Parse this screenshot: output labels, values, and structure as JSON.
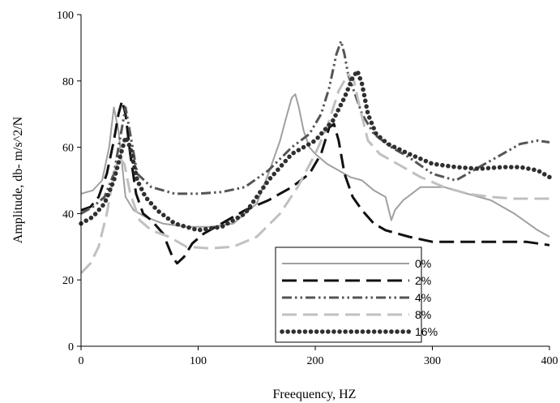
{
  "chart_data": {
    "type": "line",
    "title": "",
    "xlabel": "Freequency, HZ",
    "ylabel": "Amplitude, db- m/s^2/N",
    "xlim": [
      0,
      400
    ],
    "ylim": [
      0,
      100
    ],
    "xticks": [
      0,
      100,
      200,
      300,
      400
    ],
    "yticks": [
      0,
      20,
      40,
      60,
      80,
      100
    ],
    "grid": false,
    "legend_position": "bottom-right",
    "series": [
      {
        "name": "0%",
        "color": "#a0a0a0",
        "style": "solid",
        "x": [
          0,
          10,
          18,
          24,
          28,
          32,
          38,
          45,
          55,
          70,
          90,
          110,
          130,
          150,
          160,
          170,
          176,
          180,
          183,
          186,
          190,
          195,
          200,
          210,
          220,
          230,
          240,
          250,
          260,
          265,
          268,
          275,
          290,
          310,
          330,
          350,
          370,
          390,
          400
        ],
        "y": [
          46,
          47,
          50,
          60,
          72,
          65,
          45,
          41,
          39,
          37,
          36,
          36,
          37,
          43,
          52,
          62,
          70,
          75,
          76,
          72,
          65,
          60,
          58,
          55,
          53,
          51,
          50,
          47,
          45,
          38,
          41,
          44,
          48,
          48,
          46,
          44,
          40,
          35,
          33
        ]
      },
      {
        "name": "2%",
        "color": "#111111",
        "style": "longdash",
        "x": [
          0,
          8,
          15,
          22,
          28,
          32,
          35,
          38,
          42,
          47,
          53,
          60,
          70,
          78,
          82,
          88,
          95,
          105,
          120,
          140,
          160,
          180,
          195,
          205,
          212,
          216,
          220,
          225,
          232,
          240,
          250,
          260,
          280,
          300,
          320,
          340,
          360,
          380,
          400
        ],
        "y": [
          41,
          42,
          45,
          52,
          62,
          70,
          74,
          70,
          58,
          46,
          40,
          38,
          34,
          27,
          25,
          27,
          31,
          34,
          37,
          41,
          44,
          48,
          52,
          58,
          66,
          67,
          62,
          52,
          45,
          41,
          37,
          35,
          33,
          31.5,
          31.5,
          31.5,
          31.5,
          31.5,
          30.5
        ]
      },
      {
        "name": "4%",
        "color": "#555555",
        "style": "dashdotdot",
        "x": [
          0,
          10,
          20,
          28,
          33,
          38,
          42,
          48,
          60,
          80,
          100,
          120,
          140,
          160,
          180,
          195,
          205,
          212,
          218,
          222,
          225,
          228,
          232,
          240,
          250,
          265,
          280,
          300,
          320,
          340,
          360,
          375,
          390,
          400
        ],
        "y": [
          40,
          42,
          45,
          52,
          62,
          72,
          64,
          52,
          48,
          46,
          46,
          46.5,
          48,
          53,
          60,
          64,
          70,
          78,
          88,
          92,
          88,
          82,
          78,
          70,
          64,
          60,
          57,
          52,
          50,
          54,
          58,
          61,
          62,
          61.5
        ]
      },
      {
        "name": "8%",
        "color": "#c0c0c0",
        "style": "longdash",
        "x": [
          0,
          8,
          15,
          22,
          27,
          32,
          37,
          42,
          50,
          60,
          75,
          90,
          110,
          130,
          150,
          170,
          185,
          200,
          210,
          220,
          228,
          233,
          238,
          245,
          255,
          270,
          290,
          310,
          330,
          350,
          370,
          390,
          400
        ],
        "y": [
          22,
          25,
          30,
          40,
          50,
          57,
          55,
          46,
          38,
          35,
          33,
          30,
          29.5,
          30,
          33,
          40,
          48,
          58,
          66,
          77,
          82,
          80,
          72,
          62,
          58,
          55,
          51,
          48,
          46,
          45,
          44.5,
          44.5,
          44.5
        ]
      },
      {
        "name": "16%",
        "color": "#303030",
        "style": "dotted",
        "x": [
          0,
          10,
          20,
          28,
          34,
          38,
          42,
          48,
          55,
          65,
          80,
          100,
          120,
          140,
          160,
          180,
          200,
          215,
          225,
          232,
          236,
          240,
          245,
          252,
          262,
          280,
          300,
          320,
          340,
          360,
          375,
          390,
          400
        ],
        "y": [
          37,
          39,
          43,
          50,
          58,
          63,
          60,
          50,
          45,
          41,
          37,
          35,
          36,
          40,
          50,
          58,
          62,
          68,
          75,
          81,
          83,
          79,
          70,
          64,
          61,
          58,
          55,
          54,
          53.5,
          54,
          54,
          53,
          51
        ]
      }
    ]
  }
}
